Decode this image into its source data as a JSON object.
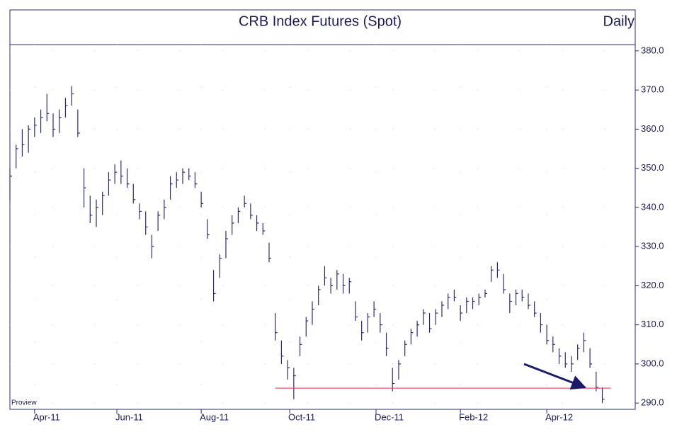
{
  "chart_data": {
    "type": "ohlc",
    "title": "CRB Index Futures (Spot)",
    "subtitle": "Daily",
    "watermark": "Proview",
    "color": "#2b2b78",
    "grid": true,
    "x": [
      0,
      3,
      6,
      9,
      12,
      15,
      18,
      21,
      24,
      27,
      30,
      33,
      36,
      39,
      42,
      45,
      48,
      51,
      54,
      57,
      60,
      63,
      66,
      69,
      72,
      75,
      78,
      81,
      84,
      87,
      90,
      93,
      96,
      99,
      102,
      105,
      108,
      111,
      114,
      117,
      120,
      123,
      126,
      129,
      132,
      135,
      138,
      141,
      144,
      147,
      150,
      153,
      156,
      159,
      162,
      165,
      168,
      171,
      174,
      177,
      180,
      183,
      186,
      189,
      192,
      195,
      198,
      201,
      204,
      207,
      210,
      213,
      216,
      219,
      222,
      225,
      228,
      231,
      234,
      237,
      240,
      243,
      246,
      249,
      252,
      255,
      258,
      261,
      264,
      267,
      270,
      273,
      276,
      279,
      282,
      285,
      288
    ],
    "high": [
      350,
      356,
      360,
      361,
      363,
      365,
      369,
      364,
      365,
      368,
      371,
      365,
      350,
      343,
      342,
      344,
      349,
      351,
      352,
      350,
      346,
      341,
      339,
      333,
      339,
      342,
      348,
      349,
      350,
      350,
      349,
      344,
      337,
      324,
      328,
      334,
      338,
      340,
      343,
      341,
      338,
      336,
      331,
      313,
      306,
      301,
      299,
      307,
      312,
      316,
      320,
      325,
      322,
      324,
      323,
      322,
      316,
      311,
      313,
      316,
      313,
      308,
      299,
      301,
      306,
      309,
      311,
      314,
      313,
      314,
      316,
      318,
      319,
      315,
      317,
      317,
      318,
      319,
      325,
      326,
      323,
      318,
      319,
      319,
      318,
      316,
      313,
      310,
      307,
      304,
      303,
      302,
      305,
      308,
      304,
      298,
      294
    ],
    "low": [
      342,
      350,
      353,
      354,
      358,
      359,
      362,
      358,
      359,
      363,
      366,
      358,
      340,
      336,
      335,
      338,
      343,
      346,
      346,
      345,
      341,
      337,
      333,
      327,
      334,
      337,
      342,
      345,
      346,
      347,
      345,
      340,
      332,
      316,
      322,
      327,
      333,
      336,
      340,
      337,
      334,
      333,
      326,
      306,
      300,
      296,
      291,
      302,
      307,
      310,
      315,
      320,
      318,
      319,
      318,
      318,
      311,
      306,
      308,
      312,
      308,
      302,
      293,
      296,
      302,
      305,
      307,
      310,
      308,
      310,
      312,
      314,
      316,
      311,
      313,
      314,
      315,
      317,
      321,
      322,
      318,
      313,
      315,
      316,
      314,
      312,
      308,
      305,
      303,
      300,
      299,
      298,
      301,
      303,
      299,
      293,
      290
    ],
    "close": [
      348,
      355,
      356,
      360,
      361,
      363,
      364,
      360,
      363,
      366,
      369,
      359,
      345,
      338,
      340,
      343,
      347,
      349,
      348,
      346,
      342,
      339,
      335,
      330,
      338,
      340,
      346,
      347,
      349,
      348,
      346,
      341,
      333,
      318,
      327,
      332,
      336,
      339,
      341,
      338,
      336,
      334,
      327,
      308,
      302,
      299,
      297,
      305,
      311,
      314,
      319,
      322,
      320,
      323,
      320,
      321,
      312,
      308,
      312,
      314,
      310,
      304,
      295,
      300,
      305,
      308,
      310,
      313,
      309,
      313,
      315,
      317,
      317,
      313,
      316,
      316,
      317,
      318,
      324,
      324,
      319,
      316,
      318,
      317,
      315,
      313,
      310,
      306,
      305,
      302,
      300,
      300,
      304,
      306,
      300,
      294,
      291
    ],
    "xlim": [
      0,
      304
    ],
    "xticks": [
      {
        "value": 12,
        "label": "Apr-11"
      },
      {
        "value": 52,
        "label": "Jun-11"
      },
      {
        "value": 93,
        "label": "Aug-11"
      },
      {
        "value": 136,
        "label": "Oct-11"
      },
      {
        "value": 178,
        "label": "Dec-11"
      },
      {
        "value": 219,
        "label": "Feb-12"
      },
      {
        "value": 261,
        "label": "Apr-12"
      }
    ],
    "ylim": [
      288.4,
      381.6
    ],
    "yticks": [
      {
        "value": 290,
        "label": "290.0"
      },
      {
        "value": 300,
        "label": "300.0"
      },
      {
        "value": 310,
        "label": "310.0"
      },
      {
        "value": 320,
        "label": "320.0"
      },
      {
        "value": 330,
        "label": "330.0"
      },
      {
        "value": 340,
        "label": "340.0"
      },
      {
        "value": 350,
        "label": "350.0"
      },
      {
        "value": 360,
        "label": "360.0"
      },
      {
        "value": 370,
        "label": "370.0"
      },
      {
        "value": 380,
        "label": "380.0"
      }
    ],
    "support_line": {
      "value": 293.8,
      "color": "#e8506a",
      "x_start": 129,
      "x_end": 292
    }
  }
}
